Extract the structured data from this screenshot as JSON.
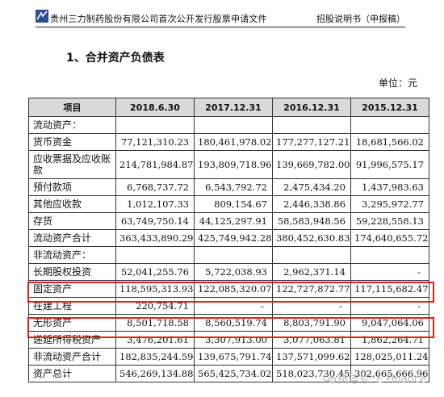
{
  "header": {
    "left_text": "贵州三力制药股份有限公司首次公开发行股票申请文件",
    "right_text": "招股说明书（申报稿）",
    "logo_icon": "company-logo-icon"
  },
  "section_title": "1、合并资产负债表",
  "unit": "单位：元",
  "table": {
    "columns": [
      "项目",
      "2018.6.30",
      "2017.12.31",
      "2016.12.31",
      "2015.12.31"
    ],
    "rows": [
      {
        "label": "流动资产：",
        "values": [
          "",
          "",
          "",
          ""
        ]
      },
      {
        "label": "货币资金",
        "values": [
          "77,121,310.23",
          "180,461,978.02",
          "177,277,127.21",
          "18,681,566.02"
        ]
      },
      {
        "label": "应收票据及应收账款",
        "values": [
          "214,781,984.87",
          "193,809,718.96",
          "139,669,782.00",
          "91,996,575.17"
        ]
      },
      {
        "label": "预付款项",
        "values": [
          "6,768,737.72",
          "6,543,792.72",
          "2,475,434.20",
          "1,437,983.63"
        ]
      },
      {
        "label": "其他应收款",
        "values": [
          "1,012,107.33",
          "809,154.67",
          "2,446,338.86",
          "3,295,972.77"
        ]
      },
      {
        "label": "存货",
        "values": [
          "63,749,750.14",
          "44,125,297.91",
          "58,583,948.56",
          "59,228,558.13"
        ]
      },
      {
        "label": "流动资产合计",
        "values": [
          "363,433,890.29",
          "425,749,942.28",
          "380,452,630.83",
          "174,640,655.72"
        ]
      },
      {
        "label": "非流动资产：",
        "values": [
          "",
          "",
          "",
          ""
        ]
      },
      {
        "label": "长期股权投资",
        "values": [
          "52,041,255.76",
          "5,722,038.93",
          "2,962,371.14",
          "-"
        ]
      },
      {
        "label": "固定资产",
        "values": [
          "118,595,313.93",
          "122,085,320.07",
          "122,727,872.77",
          "117,115,682.47"
        ]
      },
      {
        "label": "在建工程",
        "values": [
          "220,754.71",
          "-",
          "-",
          "-"
        ]
      },
      {
        "label": "无形资产",
        "values": [
          "8,501,718.58",
          "8,560,519.74",
          "8,803,791.90",
          "9,047,064.06"
        ]
      },
      {
        "label": "递延所得税资产",
        "values": [
          "3,476,201.61",
          "3,307,913.00",
          "3,077,063.81",
          "1,862,264.71"
        ]
      },
      {
        "label": "非流动资产合计",
        "values": [
          "182,835,244.59",
          "139,675,791.74",
          "137,571,099.62",
          "128,025,011.24"
        ]
      },
      {
        "label": "资产总计",
        "values": [
          "546,269,134.88",
          "565,425,734.02",
          "518,023,730.45",
          "302,665,666.96"
        ]
      }
    ]
  },
  "watermark": {
    "text": "微信号: E Finance",
    "icon": "wechat-icon"
  },
  "highlight_color": "#e02020"
}
